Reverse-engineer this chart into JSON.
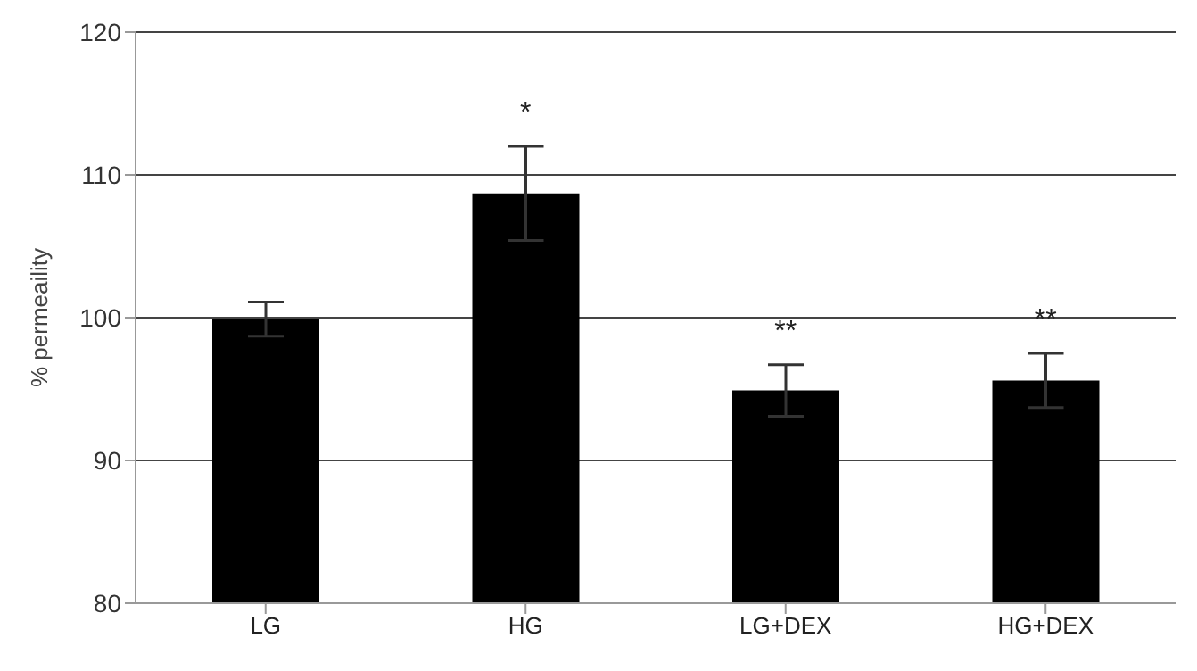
{
  "chart_data": {
    "type": "bar",
    "ylabel": "% permeaility",
    "categories": [
      "LG",
      "HG",
      "LG+DEX",
      "HG+DEX"
    ],
    "values": [
      99.9,
      108.7,
      94.9,
      95.6
    ],
    "errors": [
      1.2,
      3.3,
      1.8,
      1.9
    ],
    "color": "#000000",
    "ylim": [
      80,
      120
    ],
    "yticks": [
      80,
      90,
      100,
      110,
      120
    ],
    "grid": "y",
    "annotations": [
      {
        "text": "*",
        "x": "HG",
        "y": 108.7
      },
      {
        "text": "**",
        "x": "LG+DEX",
        "y": 94.9
      },
      {
        "text": "**",
        "x": "HG+DEX",
        "y": 95.6
      }
    ]
  }
}
